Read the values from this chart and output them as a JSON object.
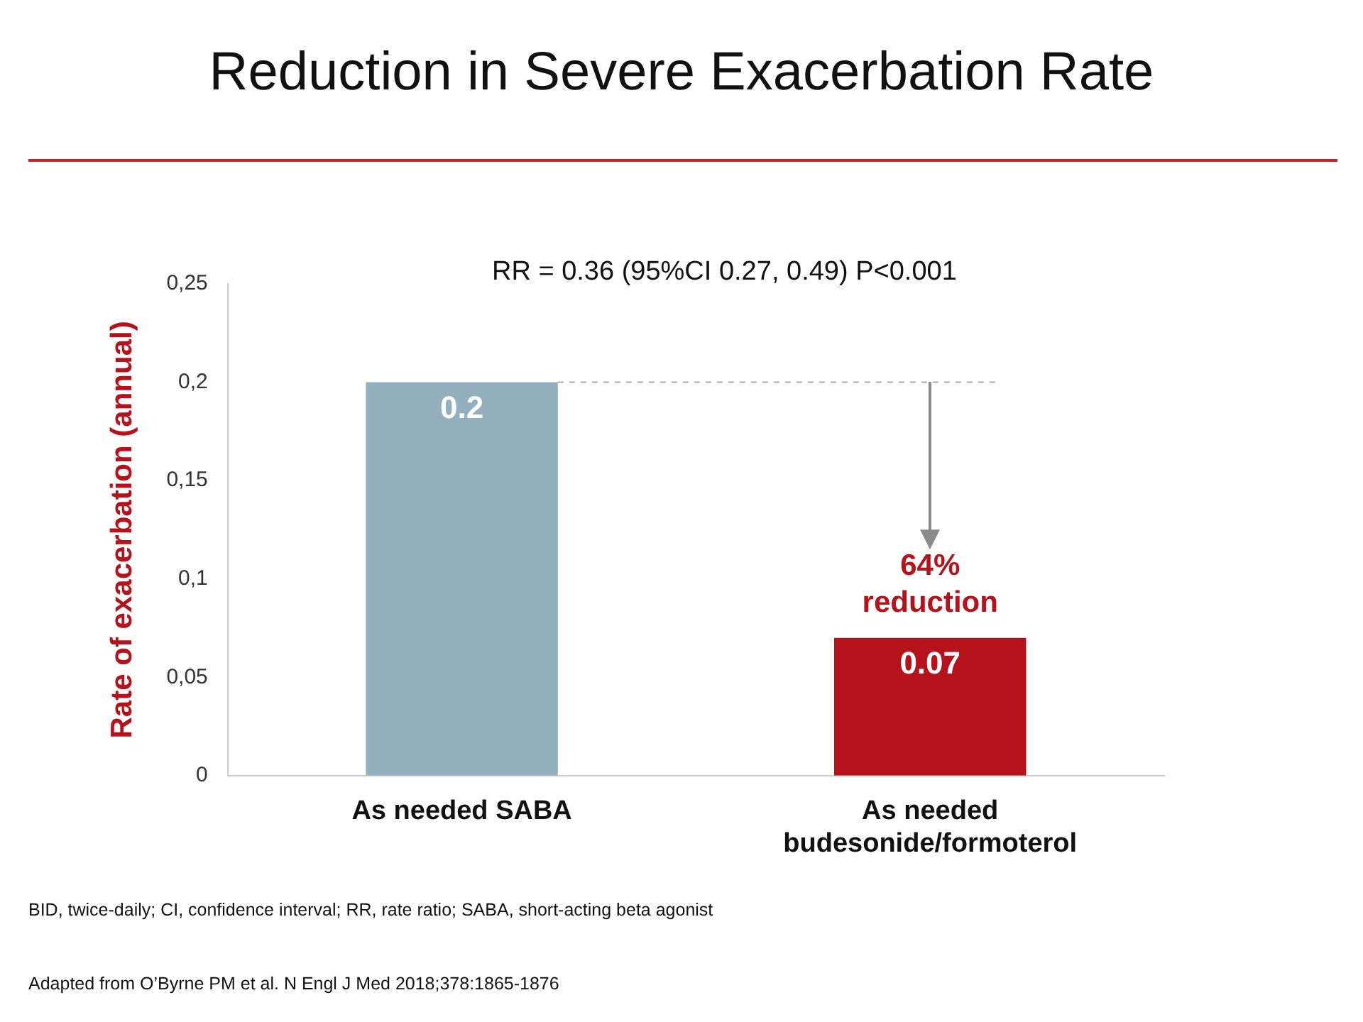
{
  "chart_data": {
    "type": "bar",
    "title": "Reduction in Severe Exacerbation Rate",
    "ylabel": "Rate of exacerbation (annual)",
    "categories": [
      "As needed SABA",
      "As needed budesonide/formoterol"
    ],
    "values": [
      0.2,
      0.07
    ],
    "colors": [
      "#94afbe",
      "#b5121b"
    ],
    "ylim": [
      0,
      0.25
    ],
    "yticks": [
      0,
      {
        "value": 0.05,
        "label": "0,05"
      },
      {
        "value": 0.1,
        "label": "0,1"
      },
      {
        "value": 0.15,
        "label": "0,15"
      },
      {
        "value": 0.2,
        "label": "0,2"
      },
      {
        "value": 0.25,
        "label": "0,25"
      }
    ],
    "grid": false,
    "legend": false,
    "data_labels": true,
    "ref_lines": [
      {
        "axis": "y",
        "value": 0.2,
        "color": "#aaaaaa",
        "line_style": "dashed"
      }
    ],
    "annotations": [
      "RR = 0.36 (95%CI 0.27, 0.49) P<0.001",
      {
        "text": "64% reduction",
        "x": "As needed budesonide/formoterol",
        "y": 0.07
      },
      "BID, twice-daily; CI, confidence interval; RR, rate ratio; SABA, short-acting beta agonist",
      "Adapted from O’Byrne PM et al. N Engl J Med 2018;378:1865-1876"
    ]
  }
}
